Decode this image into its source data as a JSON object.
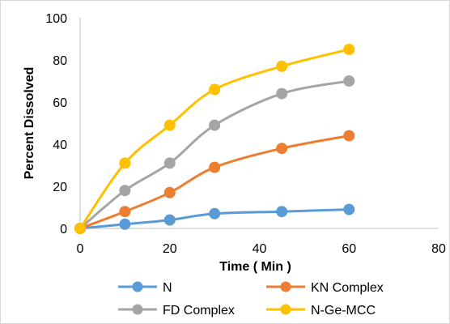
{
  "chart_data": {
    "type": "line",
    "title": "",
    "xlabel": "Time ( Min )",
    "ylabel": "Percent Dissolved",
    "xlim": [
      0,
      80
    ],
    "ylim": [
      0,
      100
    ],
    "xticks": [
      0,
      20,
      40,
      60,
      80
    ],
    "yticks": [
      0,
      20,
      40,
      60,
      80,
      100
    ],
    "grid": false,
    "legend_position": "bottom",
    "x": [
      0,
      10,
      20,
      30,
      45,
      60
    ],
    "series": [
      {
        "name": "N",
        "color": "#5b9bd5",
        "values": [
          0,
          2,
          4,
          7,
          8,
          9
        ]
      },
      {
        "name": "KN Complex",
        "color": "#ed7d31",
        "values": [
          0,
          8,
          17,
          29,
          38,
          44
        ]
      },
      {
        "name": "FD Complex",
        "color": "#a5a5a5",
        "values": [
          0,
          18,
          31,
          49,
          64,
          70
        ]
      },
      {
        "name": "N-Ge-MCC",
        "color": "#ffc000",
        "values": [
          0,
          31,
          49,
          66,
          77,
          85
        ]
      }
    ]
  }
}
